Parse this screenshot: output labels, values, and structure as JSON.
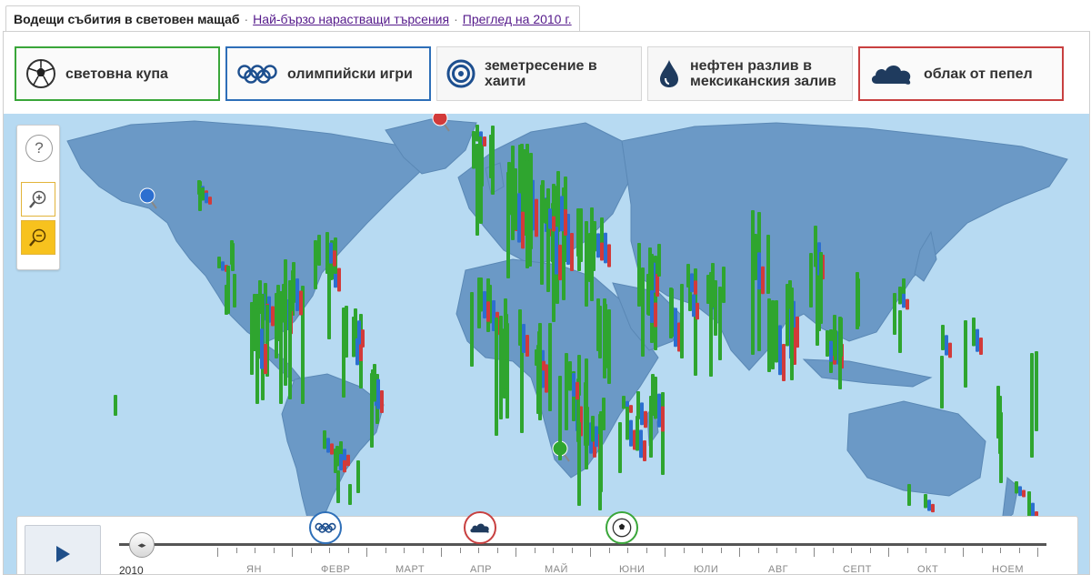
{
  "topbar": {
    "title": "Водещи събития в световен мащаб",
    "link1": "Най-бързо нарастващи търсения",
    "link2": "Преглед на 2010 г.",
    "separator": "·"
  },
  "events": [
    {
      "label": "световна купа",
      "icon": "soccer-ball-icon",
      "accent": "#3aa63a"
    },
    {
      "label": "олимпийски игри",
      "icon": "olympic-rings-icon",
      "accent": "#2e6fb8"
    },
    {
      "label": "земетресение в хаити",
      "icon": "earthquake-rings-icon",
      "accent": "#d6d6d6"
    },
    {
      "label": "нефтен разлив в мексиканския залив",
      "icon": "oil-drop-icon",
      "accent": "#d6d6d6"
    },
    {
      "label": "облак от пепел",
      "icon": "ash-cloud-icon",
      "accent": "#c84040"
    }
  ],
  "controls": {
    "help": "?",
    "zoom_in": "zoom-in-icon",
    "zoom_out": "zoom-out-icon"
  },
  "timeline": {
    "year": "2010",
    "months": [
      "ЯН",
      "ФЕВР",
      "МАРТ",
      "АПР",
      "МАЙ",
      "ЮНИ",
      "ЮЛИ",
      "АВГ",
      "СЕПТ",
      "ОКТ",
      "НОЕМ"
    ],
    "markers": [
      "olympic-rings-icon",
      "ash-cloud-icon",
      "soccer-ball-icon"
    ]
  },
  "colors": {
    "ocean": "#b7daf2",
    "land": "#6b99c6",
    "bar_green": "#2fa52f",
    "bar_blue": "#2c6fd0",
    "bar_red": "#d23a3a"
  }
}
